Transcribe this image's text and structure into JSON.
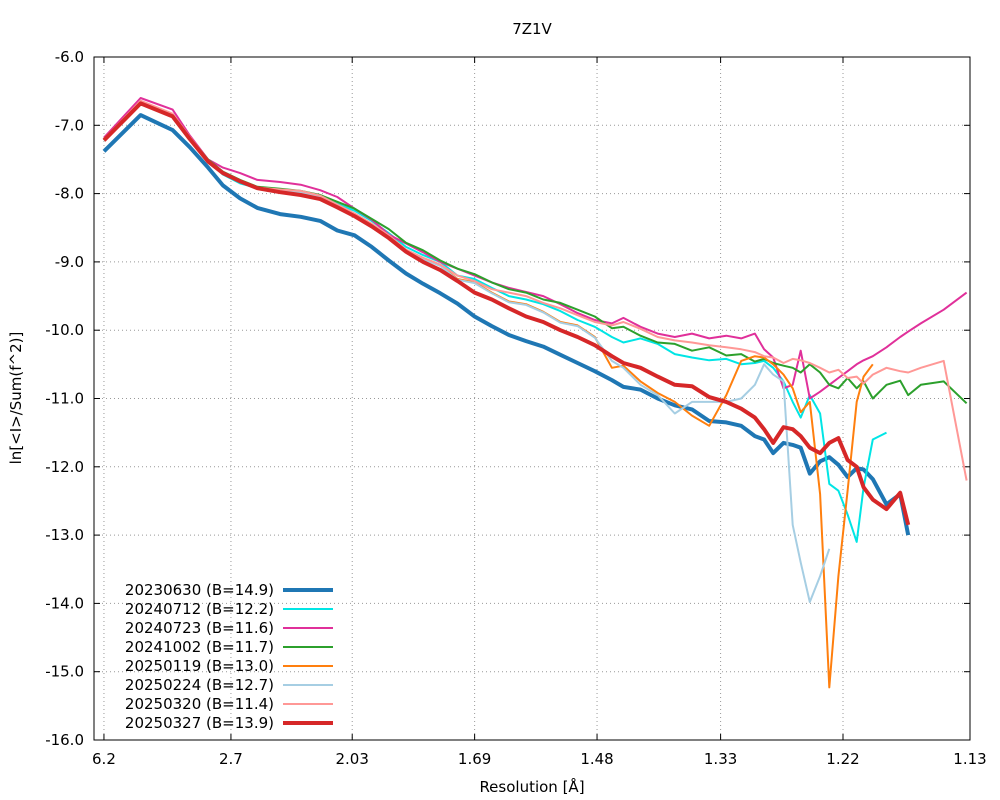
{
  "chart_data": {
    "type": "line",
    "title": "7Z1V",
    "xlabel": "Resolution [Å]",
    "ylabel": "ln[<I>/Sum(f^2)]",
    "x_scale": "reciprocal-squared resolution (1/d²)",
    "xlim": [
      0.0173,
      0.783
    ],
    "ylim": [
      -16.0,
      -6.0
    ],
    "x_ticks": [
      {
        "label": "6.2",
        "s": 0.026
      },
      {
        "label": "2.7",
        "s": 0.137
      },
      {
        "label": "2.03",
        "s": 0.243
      },
      {
        "label": "1.69",
        "s": 0.35
      },
      {
        "label": "1.48",
        "s": 0.457
      },
      {
        "label": "1.33",
        "s": 0.565
      },
      {
        "label": "1.22",
        "s": 0.672
      },
      {
        "label": "1.13",
        "s": 0.783
      }
    ],
    "y_ticks": [
      "-6.0",
      "-7.0",
      "-8.0",
      "-9.0",
      "-10.0",
      "-11.0",
      "-12.0",
      "-13.0",
      "-14.0",
      "-15.0",
      "-16.0"
    ],
    "grid": true,
    "legend_position": "bottom-left",
    "series": [
      {
        "name": "20230630 (B=14.9)",
        "color": "#1f77b4",
        "width": 4,
        "x": [
          0.026,
          0.058,
          0.086,
          0.101,
          0.117,
          0.13,
          0.145,
          0.16,
          0.18,
          0.198,
          0.215,
          0.23,
          0.245,
          0.26,
          0.275,
          0.29,
          0.305,
          0.32,
          0.335,
          0.35,
          0.365,
          0.38,
          0.395,
          0.41,
          0.425,
          0.44,
          0.455,
          0.47,
          0.48,
          0.495,
          0.51,
          0.525,
          0.54,
          0.555,
          0.57,
          0.583,
          0.595,
          0.603,
          0.611,
          0.62,
          0.628,
          0.635,
          0.643,
          0.652,
          0.66,
          0.668,
          0.676,
          0.684,
          0.69,
          0.698,
          0.71,
          0.722,
          0.729
        ],
        "y": [
          -7.38,
          -6.85,
          -7.07,
          -7.32,
          -7.62,
          -7.88,
          -8.07,
          -8.21,
          -8.3,
          -8.34,
          -8.4,
          -8.54,
          -8.61,
          -8.78,
          -8.98,
          -9.17,
          -9.32,
          -9.46,
          -9.61,
          -9.8,
          -9.94,
          -10.07,
          -10.16,
          -10.24,
          -10.36,
          -10.48,
          -10.6,
          -10.73,
          -10.83,
          -10.87,
          -11.0,
          -11.1,
          -11.16,
          -11.33,
          -11.35,
          -11.4,
          -11.55,
          -11.6,
          -11.8,
          -11.65,
          -11.68,
          -11.72,
          -12.1,
          -11.92,
          -11.86,
          -11.97,
          -12.15,
          -12.02,
          -12.04,
          -12.18,
          -12.55,
          -12.4,
          -13.0
        ]
      },
      {
        "name": "20240712 (B=12.2)",
        "color": "#00e5e5",
        "width": 2,
        "x": [
          0.026,
          0.058,
          0.086,
          0.101,
          0.117,
          0.13,
          0.145,
          0.16,
          0.18,
          0.198,
          0.215,
          0.23,
          0.245,
          0.26,
          0.275,
          0.29,
          0.305,
          0.32,
          0.335,
          0.35,
          0.365,
          0.38,
          0.395,
          0.41,
          0.425,
          0.44,
          0.455,
          0.47,
          0.48,
          0.495,
          0.51,
          0.525,
          0.54,
          0.555,
          0.57,
          0.583,
          0.595,
          0.603,
          0.611,
          0.62,
          0.628,
          0.635,
          0.643,
          0.652,
          0.66,
          0.668,
          0.676,
          0.684,
          0.69,
          0.698,
          0.71
        ],
        "y": [
          -7.22,
          -6.65,
          -6.85,
          -7.2,
          -7.52,
          -7.72,
          -7.85,
          -7.92,
          -7.95,
          -7.98,
          -8.05,
          -8.15,
          -8.25,
          -8.4,
          -8.58,
          -8.78,
          -8.9,
          -9.0,
          -9.2,
          -9.25,
          -9.38,
          -9.5,
          -9.55,
          -9.62,
          -9.72,
          -9.85,
          -9.95,
          -10.1,
          -10.18,
          -10.12,
          -10.2,
          -10.35,
          -10.4,
          -10.44,
          -10.42,
          -10.5,
          -10.48,
          -10.45,
          -10.55,
          -10.75,
          -11.05,
          -11.28,
          -10.95,
          -11.22,
          -12.25,
          -12.35,
          -12.7,
          -13.1,
          -12.3,
          -11.6,
          -11.5
        ]
      },
      {
        "name": "20240723 (B=11.6)",
        "color": "#e0309a",
        "width": 2,
        "x": [
          0.026,
          0.058,
          0.086,
          0.101,
          0.117,
          0.13,
          0.145,
          0.16,
          0.18,
          0.198,
          0.215,
          0.23,
          0.245,
          0.26,
          0.275,
          0.29,
          0.305,
          0.32,
          0.335,
          0.35,
          0.365,
          0.38,
          0.395,
          0.41,
          0.425,
          0.44,
          0.455,
          0.47,
          0.48,
          0.495,
          0.51,
          0.525,
          0.54,
          0.555,
          0.57,
          0.583,
          0.595,
          0.603,
          0.611,
          0.62,
          0.628,
          0.635,
          0.643,
          0.652,
          0.66,
          0.668,
          0.676,
          0.684,
          0.69,
          0.698,
          0.71,
          0.722,
          0.729,
          0.74,
          0.76,
          0.78
        ],
        "y": [
          -7.18,
          -6.6,
          -6.77,
          -7.15,
          -7.5,
          -7.62,
          -7.7,
          -7.8,
          -7.83,
          -7.87,
          -7.95,
          -8.05,
          -8.22,
          -8.38,
          -8.6,
          -8.73,
          -8.86,
          -9.0,
          -9.1,
          -9.2,
          -9.3,
          -9.38,
          -9.44,
          -9.5,
          -9.62,
          -9.75,
          -9.85,
          -9.9,
          -9.82,
          -9.95,
          -10.05,
          -10.1,
          -10.05,
          -10.12,
          -10.08,
          -10.12,
          -10.05,
          -10.28,
          -10.4,
          -10.85,
          -10.8,
          -10.3,
          -11.0,
          -10.9,
          -10.8,
          -10.7,
          -10.6,
          -10.5,
          -10.44,
          -10.38,
          -10.25,
          -10.1,
          -10.02,
          -9.9,
          -9.7,
          -9.45
        ]
      },
      {
        "name": "20241002 (B=11.7)",
        "color": "#2ca02c",
        "width": 2,
        "x": [
          0.026,
          0.058,
          0.086,
          0.101,
          0.117,
          0.13,
          0.145,
          0.16,
          0.18,
          0.198,
          0.215,
          0.23,
          0.245,
          0.26,
          0.275,
          0.29,
          0.305,
          0.32,
          0.335,
          0.35,
          0.365,
          0.38,
          0.395,
          0.41,
          0.425,
          0.44,
          0.455,
          0.47,
          0.48,
          0.495,
          0.51,
          0.525,
          0.54,
          0.555,
          0.57,
          0.583,
          0.595,
          0.603,
          0.611,
          0.62,
          0.628,
          0.635,
          0.643,
          0.652,
          0.66,
          0.668,
          0.676,
          0.684,
          0.69,
          0.698,
          0.71,
          0.722,
          0.729,
          0.74,
          0.76,
          0.78
        ],
        "y": [
          -7.22,
          -6.68,
          -6.88,
          -7.18,
          -7.5,
          -7.68,
          -7.8,
          -7.9,
          -7.93,
          -7.96,
          -8.02,
          -8.12,
          -8.22,
          -8.37,
          -8.52,
          -8.72,
          -8.83,
          -8.98,
          -9.1,
          -9.18,
          -9.3,
          -9.4,
          -9.45,
          -9.55,
          -9.6,
          -9.7,
          -9.8,
          -9.97,
          -9.95,
          -10.08,
          -10.18,
          -10.2,
          -10.3,
          -10.25,
          -10.37,
          -10.35,
          -10.46,
          -10.42,
          -10.48,
          -10.52,
          -10.55,
          -10.62,
          -10.5,
          -10.62,
          -10.8,
          -10.85,
          -10.7,
          -10.85,
          -10.75,
          -11.0,
          -10.8,
          -10.74,
          -10.95,
          -10.8,
          -10.75,
          -11.07
        ]
      },
      {
        "name": "20250119 (B=13.0)",
        "color": "#ff7f0e",
        "width": 2,
        "x": [
          0.026,
          0.058,
          0.086,
          0.101,
          0.117,
          0.13,
          0.145,
          0.16,
          0.18,
          0.198,
          0.215,
          0.23,
          0.245,
          0.26,
          0.275,
          0.29,
          0.305,
          0.32,
          0.335,
          0.35,
          0.365,
          0.38,
          0.395,
          0.41,
          0.425,
          0.44,
          0.455,
          0.47,
          0.48,
          0.495,
          0.51,
          0.525,
          0.54,
          0.555,
          0.57,
          0.583,
          0.595,
          0.603,
          0.611,
          0.62,
          0.628,
          0.635,
          0.643,
          0.652,
          0.66,
          0.668,
          0.676,
          0.684,
          0.69,
          0.698
        ],
        "y": [
          -7.2,
          -6.65,
          -6.84,
          -7.18,
          -7.52,
          -7.7,
          -7.82,
          -7.92,
          -7.95,
          -7.97,
          -8.04,
          -8.17,
          -8.3,
          -8.45,
          -8.62,
          -8.83,
          -8.95,
          -9.05,
          -9.25,
          -9.3,
          -9.45,
          -9.58,
          -9.62,
          -9.73,
          -9.88,
          -9.93,
          -10.1,
          -10.55,
          -10.52,
          -10.75,
          -10.92,
          -11.05,
          -11.25,
          -11.4,
          -10.95,
          -10.45,
          -10.38,
          -10.4,
          -10.5,
          -10.65,
          -10.85,
          -11.2,
          -11.05,
          -12.4,
          -15.23,
          -13.6,
          -12.35,
          -11.05,
          -10.68,
          -10.5
        ]
      },
      {
        "name": "20250224 (B=12.7)",
        "color": "#a6cee3",
        "width": 2,
        "x": [
          0.026,
          0.058,
          0.086,
          0.101,
          0.117,
          0.13,
          0.145,
          0.16,
          0.18,
          0.198,
          0.215,
          0.23,
          0.245,
          0.26,
          0.275,
          0.29,
          0.305,
          0.32,
          0.335,
          0.35,
          0.365,
          0.38,
          0.395,
          0.41,
          0.425,
          0.44,
          0.455,
          0.47,
          0.48,
          0.495,
          0.51,
          0.525,
          0.54,
          0.555,
          0.57,
          0.583,
          0.595,
          0.603,
          0.611,
          0.62,
          0.628,
          0.635,
          0.643,
          0.652,
          0.66
        ],
        "y": [
          -7.2,
          -6.66,
          -6.86,
          -7.19,
          -7.53,
          -7.71,
          -7.83,
          -7.93,
          -7.96,
          -7.98,
          -8.05,
          -8.17,
          -8.31,
          -8.46,
          -8.63,
          -8.84,
          -8.96,
          -9.06,
          -9.26,
          -9.31,
          -9.46,
          -9.59,
          -9.63,
          -9.74,
          -9.89,
          -9.94,
          -10.11,
          -10.45,
          -10.55,
          -10.8,
          -10.95,
          -11.22,
          -11.05,
          -11.05,
          -11.05,
          -11.0,
          -10.8,
          -10.5,
          -10.65,
          -10.75,
          -12.85,
          -13.4,
          -13.98,
          -13.6,
          -13.2
        ]
      },
      {
        "name": "20250320 (B=11.4)",
        "color": "#ff9896",
        "width": 2,
        "x": [
          0.026,
          0.058,
          0.086,
          0.101,
          0.117,
          0.13,
          0.145,
          0.16,
          0.18,
          0.198,
          0.215,
          0.23,
          0.245,
          0.26,
          0.275,
          0.29,
          0.305,
          0.32,
          0.335,
          0.35,
          0.365,
          0.38,
          0.395,
          0.41,
          0.425,
          0.44,
          0.455,
          0.47,
          0.48,
          0.495,
          0.51,
          0.525,
          0.54,
          0.555,
          0.57,
          0.583,
          0.595,
          0.603,
          0.611,
          0.62,
          0.628,
          0.635,
          0.643,
          0.652,
          0.66,
          0.668,
          0.676,
          0.684,
          0.69,
          0.698,
          0.71,
          0.722,
          0.729,
          0.74,
          0.76,
          0.78
        ],
        "y": [
          -7.21,
          -6.64,
          -6.83,
          -7.17,
          -7.51,
          -7.69,
          -7.81,
          -7.91,
          -7.94,
          -7.96,
          -8.03,
          -8.16,
          -8.29,
          -8.44,
          -8.61,
          -8.82,
          -8.94,
          -9.04,
          -9.2,
          -9.28,
          -9.4,
          -9.45,
          -9.5,
          -9.6,
          -9.68,
          -9.78,
          -9.88,
          -9.93,
          -9.88,
          -9.98,
          -10.1,
          -10.15,
          -10.18,
          -10.22,
          -10.25,
          -10.28,
          -10.32,
          -10.38,
          -10.4,
          -10.48,
          -10.42,
          -10.44,
          -10.48,
          -10.55,
          -10.62,
          -10.58,
          -10.7,
          -10.68,
          -10.78,
          -10.65,
          -10.55,
          -10.6,
          -10.62,
          -10.55,
          -10.45,
          -12.2
        ]
      },
      {
        "name": "20250327 (B=13.9)",
        "color": "#d62728",
        "width": 4,
        "x": [
          0.026,
          0.058,
          0.086,
          0.101,
          0.117,
          0.13,
          0.145,
          0.16,
          0.18,
          0.198,
          0.215,
          0.23,
          0.245,
          0.26,
          0.275,
          0.29,
          0.305,
          0.32,
          0.335,
          0.35,
          0.365,
          0.38,
          0.395,
          0.41,
          0.425,
          0.44,
          0.455,
          0.47,
          0.48,
          0.495,
          0.51,
          0.525,
          0.54,
          0.555,
          0.57,
          0.583,
          0.595,
          0.603,
          0.611,
          0.62,
          0.628,
          0.635,
          0.643,
          0.652,
          0.66,
          0.668,
          0.676,
          0.684,
          0.69,
          0.698,
          0.71,
          0.722,
          0.729
        ],
        "y": [
          -7.22,
          -6.68,
          -6.87,
          -7.2,
          -7.53,
          -7.7,
          -7.82,
          -7.92,
          -7.98,
          -8.02,
          -8.08,
          -8.2,
          -8.33,
          -8.48,
          -8.65,
          -8.85,
          -9.0,
          -9.12,
          -9.28,
          -9.45,
          -9.55,
          -9.68,
          -9.8,
          -9.88,
          -10.0,
          -10.1,
          -10.22,
          -10.38,
          -10.48,
          -10.55,
          -10.68,
          -10.8,
          -10.82,
          -10.98,
          -11.05,
          -11.15,
          -11.28,
          -11.45,
          -11.65,
          -11.42,
          -11.45,
          -11.55,
          -11.72,
          -11.8,
          -11.65,
          -11.58,
          -11.9,
          -12.0,
          -12.3,
          -12.48,
          -12.62,
          -12.38,
          -12.85
        ]
      }
    ]
  }
}
